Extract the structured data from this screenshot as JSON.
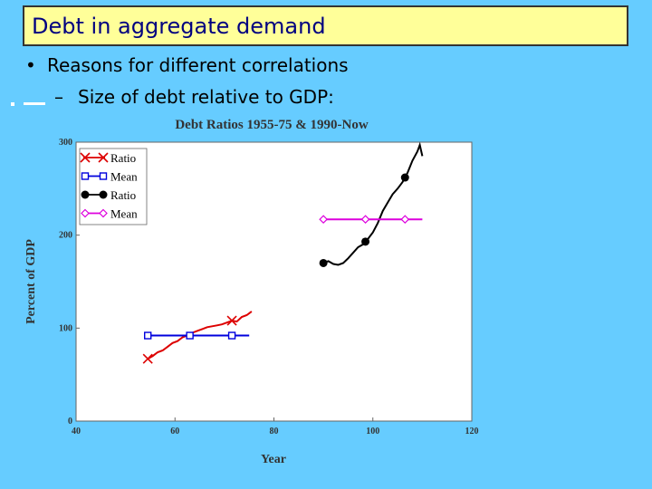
{
  "slide": {
    "title": "Debt in aggregate demand",
    "bullet": "Reasons for different correlations",
    "sub_bullet": "Size of debt relative to GDP:",
    "bullet_glyph": "•",
    "sub_glyph": "–"
  },
  "colors": {
    "background": "#66CCFF",
    "title_fill": "#FFFF99",
    "title_text": "#000080",
    "ratio_1955_75": "#DD0000",
    "mean_1955_75": "#0000DD",
    "ratio_1990_now": "#000000",
    "mean_1990_now": "#DD00DD"
  },
  "chart_data": {
    "type": "line",
    "title": "Debt Ratios 1955-75 & 1990-Now",
    "xlabel": "Year",
    "ylabel": "Percent of GDP",
    "xlim": [
      40,
      120
    ],
    "ylim": [
      0,
      300
    ],
    "xticks": [
      "40",
      "60",
      "80",
      "100",
      "120"
    ],
    "yticks": [
      "0",
      "100",
      "200",
      "300"
    ],
    "grid": false,
    "legend_position": "top-left",
    "series": [
      {
        "name": "Ratio",
        "color": "#DD0000",
        "marker": "x",
        "x": [
          54.5,
          55.5,
          56.5,
          57.5,
          58.5,
          59.5,
          60.5,
          61.5,
          62.5,
          63.5,
          64.5,
          65.5,
          66.5,
          67.5,
          68.5,
          69.5,
          70.5,
          71.5,
          72.5,
          73.5,
          74.5,
          75.5
        ],
        "y": [
          67,
          70,
          74,
          76,
          80,
          84,
          86,
          90,
          92,
          95,
          97,
          99,
          101,
          102,
          103,
          104,
          106,
          108,
          107,
          112,
          114,
          118
        ],
        "marker_x": [
          54.5,
          71.5
        ]
      },
      {
        "name": "Mean",
        "color": "#0000DD",
        "marker": "square",
        "x": [
          54.5,
          75
        ],
        "y": [
          92,
          92
        ],
        "marker_x": [
          54.5,
          63,
          71.5
        ]
      },
      {
        "name": "Ratio",
        "color": "#000000",
        "marker": "circle",
        "x": [
          90,
          91,
          92,
          93,
          94,
          95,
          96,
          97,
          98,
          99,
          100,
          101,
          102,
          103,
          104,
          105,
          106,
          107,
          108,
          109,
          109.5,
          110
        ],
        "y": [
          170,
          172,
          169,
          168,
          170,
          175,
          181,
          187,
          190,
          196,
          203,
          213,
          226,
          235,
          244,
          250,
          257,
          267,
          280,
          290,
          297,
          285
        ],
        "marker_x": [
          90,
          98.5,
          106.5
        ]
      },
      {
        "name": "Mean",
        "color": "#DD00DD",
        "marker": "diamond",
        "x": [
          90,
          110
        ],
        "y": [
          217,
          217
        ],
        "marker_x": [
          90,
          98.5,
          106.5
        ]
      }
    ]
  }
}
